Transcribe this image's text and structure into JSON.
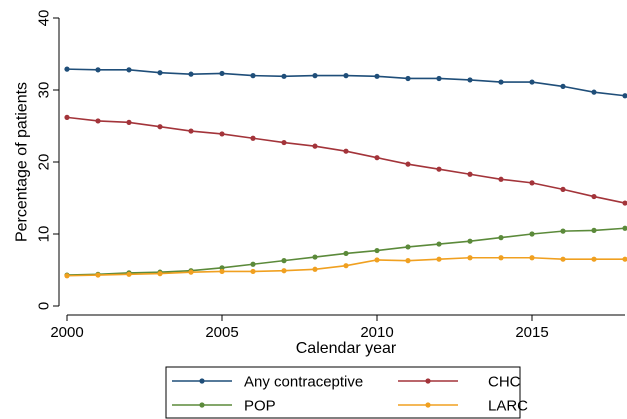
{
  "chart_data": {
    "type": "line",
    "title": "",
    "xlabel": "Calendar year",
    "ylabel": "Percentage of patients",
    "xlim": [
      2000,
      2018
    ],
    "ylim": [
      0,
      40
    ],
    "x_ticks": [
      2000,
      2005,
      2010,
      2015
    ],
    "y_ticks": [
      0,
      10,
      20,
      30,
      40
    ],
    "grid": false,
    "legend_position": "bottom",
    "x": [
      2000,
      2001,
      2002,
      2003,
      2004,
      2005,
      2006,
      2007,
      2008,
      2009,
      2010,
      2011,
      2012,
      2013,
      2014,
      2015,
      2016,
      2017,
      2018
    ],
    "series": [
      {
        "name": "Any contraceptive",
        "color": "#1f4e79",
        "values": [
          32.9,
          32.8,
          32.8,
          32.4,
          32.2,
          32.3,
          32.0,
          31.9,
          32.0,
          32.0,
          31.9,
          31.6,
          31.6,
          31.4,
          31.1,
          31.1,
          30.5,
          29.7,
          29.2
        ]
      },
      {
        "name": "CHC",
        "color": "#a3343a",
        "values": [
          26.2,
          25.7,
          25.5,
          24.9,
          24.3,
          23.9,
          23.3,
          22.7,
          22.2,
          21.5,
          20.6,
          19.7,
          19.0,
          18.3,
          17.6,
          17.1,
          16.2,
          15.2,
          14.3
        ]
      },
      {
        "name": "POP",
        "color": "#5b8a3a",
        "values": [
          4.3,
          4.4,
          4.6,
          4.7,
          4.9,
          5.3,
          5.8,
          6.3,
          6.8,
          7.3,
          7.7,
          8.2,
          8.6,
          9.0,
          9.5,
          10.0,
          10.4,
          10.5,
          10.8
        ]
      },
      {
        "name": "LARC",
        "color": "#f0a020",
        "values": [
          4.2,
          4.3,
          4.4,
          4.5,
          4.7,
          4.8,
          4.8,
          4.9,
          5.1,
          5.6,
          6.4,
          6.3,
          6.5,
          6.7,
          6.7,
          6.7,
          6.5,
          6.5,
          6.5
        ]
      }
    ]
  }
}
